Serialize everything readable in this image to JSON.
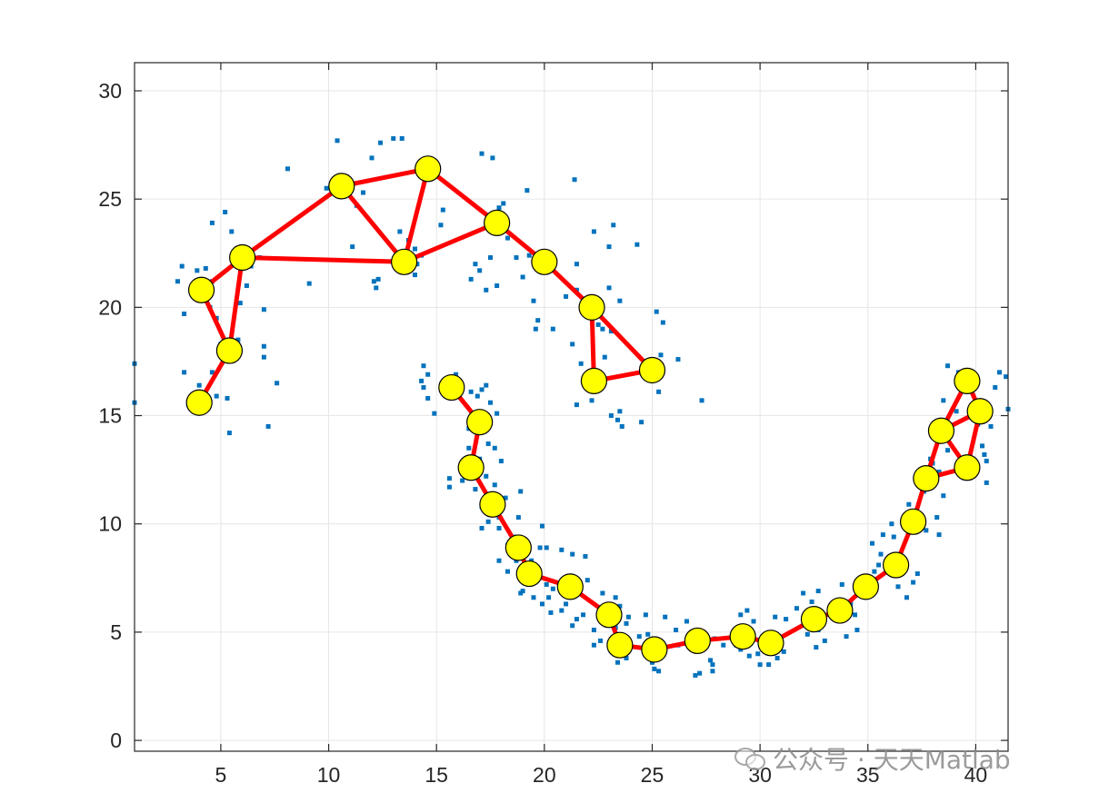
{
  "chart_data": {
    "type": "scatter",
    "title": "",
    "xlabel": "",
    "ylabel": "",
    "xlim": [
      1,
      41.5
    ],
    "ylim": [
      -0.5,
      31.3
    ],
    "xticks": [
      5,
      10,
      15,
      20,
      25,
      30,
      35,
      40
    ],
    "yticks": [
      0,
      5,
      10,
      15,
      20,
      25,
      30
    ],
    "grid": true,
    "colors": {
      "points": "#0072BD",
      "nodes_fill": "#FFFF00",
      "nodes_edge": "#000000",
      "edges": "#FF0000"
    },
    "scatter_points": [
      [
        4.0,
        16.4
      ],
      [
        3.5,
        15.5
      ],
      [
        4.5,
        15.6
      ],
      [
        4.8,
        15.9
      ],
      [
        5.3,
        15.8
      ],
      [
        5.4,
        14.2
      ],
      [
        3.3,
        17.0
      ],
      [
        4.6,
        17.0
      ],
      [
        5.1,
        17.8
      ],
      [
        5.0,
        18.3
      ],
      [
        5.8,
        18.5
      ],
      [
        4.5,
        20.0
      ],
      [
        4.8,
        19.5
      ],
      [
        3.3,
        19.7
      ],
      [
        3.0,
        21.2
      ],
      [
        3.2,
        21.9
      ],
      [
        3.9,
        21.7
      ],
      [
        4.3,
        21.8
      ],
      [
        4.6,
        21.2
      ],
      [
        5.9,
        20.2
      ],
      [
        6.4,
        21.9
      ],
      [
        6.2,
        21.0
      ],
      [
        7.0,
        19.9
      ],
      [
        7.0,
        18.2
      ],
      [
        7.0,
        17.7
      ],
      [
        7.6,
        16.5
      ],
      [
        7.2,
        14.5
      ],
      [
        4.6,
        23.9
      ],
      [
        5.2,
        24.4
      ],
      [
        5.5,
        23.5
      ],
      [
        6.8,
        22.3
      ],
      [
        8.1,
        26.4
      ],
      [
        9.1,
        21.1
      ],
      [
        9.9,
        25.5
      ],
      [
        10.4,
        27.7
      ],
      [
        11.6,
        25.3
      ],
      [
        11.3,
        24.7
      ],
      [
        11.1,
        22.8
      ],
      [
        12.0,
        26.9
      ],
      [
        12.4,
        27.6
      ],
      [
        13.0,
        27.8
      ],
      [
        13.4,
        27.8
      ],
      [
        13.3,
        23.5
      ],
      [
        13.7,
        23.1
      ],
      [
        14.0,
        22.7
      ],
      [
        14.1,
        22.0
      ],
      [
        14.0,
        21.5
      ],
      [
        12.3,
        21.3
      ],
      [
        12.1,
        21.2
      ],
      [
        12.2,
        20.9
      ],
      [
        14.3,
        22.4
      ],
      [
        15.2,
        23.8
      ],
      [
        15.3,
        24.5
      ],
      [
        14.6,
        25.9
      ],
      [
        15.0,
        26.5
      ],
      [
        16.8,
        22.0
      ],
      [
        17.5,
        22.3
      ],
      [
        16.6,
        21.3
      ],
      [
        17.0,
        21.7
      ],
      [
        17.3,
        20.8
      ],
      [
        17.8,
        21.0
      ],
      [
        17.1,
        27.1
      ],
      [
        17.6,
        26.9
      ],
      [
        17.8,
        24.2
      ],
      [
        17.9,
        24.6
      ],
      [
        18.3,
        23.2
      ],
      [
        18.7,
        22.3
      ],
      [
        19.3,
        22.4
      ],
      [
        19.2,
        25.4
      ],
      [
        18.1,
        24.8
      ],
      [
        19.0,
        21.4
      ],
      [
        19.5,
        20.3
      ],
      [
        20.3,
        22.1
      ],
      [
        21.0,
        20.5
      ],
      [
        21.5,
        22.0
      ],
      [
        21.5,
        20.8
      ],
      [
        21.4,
        25.9
      ],
      [
        20.4,
        19.0
      ],
      [
        21.3,
        18.3
      ],
      [
        19.7,
        19.4
      ],
      [
        19.6,
        19.0
      ],
      [
        22.3,
        23.5
      ],
      [
        23.0,
        22.8
      ],
      [
        23.2,
        23.8
      ],
      [
        23.0,
        20.9
      ],
      [
        22.7,
        19.0
      ],
      [
        23.1,
        18.9
      ],
      [
        22.5,
        19.2
      ],
      [
        23.5,
        20.3
      ],
      [
        24.3,
        22.9
      ],
      [
        21.9,
        16.4
      ],
      [
        21.5,
        15.5
      ],
      [
        22.2,
        15.7
      ],
      [
        21.7,
        17.4
      ],
      [
        22.8,
        17.7
      ],
      [
        23.1,
        15.0
      ],
      [
        23.4,
        14.8
      ],
      [
        23.6,
        14.5
      ],
      [
        24.5,
        14.7
      ],
      [
        23.5,
        15.2
      ],
      [
        25.3,
        16.1
      ],
      [
        25.2,
        19.8
      ],
      [
        25.5,
        19.3
      ],
      [
        25.4,
        17.8
      ],
      [
        24.9,
        17.0
      ],
      [
        26.2,
        17.6
      ],
      [
        27.3,
        15.7
      ],
      [
        14.4,
        17.3
      ],
      [
        14.6,
        16.9
      ],
      [
        14.3,
        16.6
      ],
      [
        14.4,
        16.3
      ],
      [
        14.6,
        15.8
      ],
      [
        14.9,
        15.1
      ],
      [
        15.9,
        16.9
      ],
      [
        16.0,
        16.5
      ],
      [
        15.8,
        16.3
      ],
      [
        16.6,
        16.1
      ],
      [
        16.9,
        15.9
      ],
      [
        17.1,
        16.2
      ],
      [
        17.3,
        16.4
      ],
      [
        17.5,
        15.6
      ],
      [
        17.8,
        15.1
      ],
      [
        17.2,
        14.3
      ],
      [
        16.5,
        14.4
      ],
      [
        16.5,
        13.5
      ],
      [
        17.4,
        13.7
      ],
      [
        17.7,
        13.5
      ],
      [
        17.0,
        13.0
      ],
      [
        16.5,
        12.8
      ],
      [
        15.6,
        12.1
      ],
      [
        15.6,
        11.7
      ],
      [
        16.2,
        12.0
      ],
      [
        16.8,
        11.6
      ],
      [
        17.3,
        12.2
      ],
      [
        17.1,
        10.8
      ],
      [
        17.3,
        11.3
      ],
      [
        17.7,
        11.8
      ],
      [
        18.0,
        12.9
      ],
      [
        18.2,
        11.2
      ],
      [
        18.9,
        11.5
      ],
      [
        18.8,
        10.3
      ],
      [
        17.9,
        10.3
      ],
      [
        17.1,
        9.8
      ],
      [
        17.4,
        10.1
      ],
      [
        17.9,
        9.8
      ],
      [
        18.6,
        9.4
      ],
      [
        18.3,
        9.0
      ],
      [
        17.9,
        8.3
      ],
      [
        18.3,
        7.8
      ],
      [
        18.7,
        8.3
      ],
      [
        19.1,
        8.8
      ],
      [
        19.4,
        8.3
      ],
      [
        19.9,
        9.9
      ],
      [
        19.8,
        8.9
      ],
      [
        20.1,
        8.9
      ],
      [
        20.8,
        8.8
      ],
      [
        21.3,
        8.6
      ],
      [
        21.9,
        8.5
      ],
      [
        22.0,
        7.4
      ],
      [
        21.1,
        7.4
      ],
      [
        20.4,
        7.0
      ],
      [
        20.1,
        7.2
      ],
      [
        20.2,
        6.6
      ],
      [
        19.0,
        6.9
      ],
      [
        18.9,
        6.8
      ],
      [
        19.5,
        6.6
      ],
      [
        19.9,
        6.3
      ],
      [
        20.3,
        5.9
      ],
      [
        20.8,
        6.0
      ],
      [
        21.0,
        6.3
      ],
      [
        21.5,
        5.6
      ],
      [
        21.8,
        5.8
      ],
      [
        21.3,
        5.3
      ],
      [
        22.6,
        6.0
      ],
      [
        22.7,
        6.8
      ],
      [
        23.3,
        6.6
      ],
      [
        23.5,
        6.2
      ],
      [
        22.3,
        5.1
      ],
      [
        22.6,
        4.6
      ],
      [
        22.3,
        4.4
      ],
      [
        23.3,
        5.2
      ],
      [
        23.8,
        5.4
      ],
      [
        23.9,
        5.7
      ],
      [
        23.8,
        3.8
      ],
      [
        23.4,
        3.6
      ],
      [
        23.7,
        4.5
      ],
      [
        24.4,
        4.8
      ],
      [
        24.8,
        4.9
      ],
      [
        24.7,
        5.8
      ],
      [
        25.6,
        5.7
      ],
      [
        25.6,
        4.2
      ],
      [
        25.1,
        3.3
      ],
      [
        25.0,
        3.6
      ],
      [
        25.3,
        3.2
      ],
      [
        26.1,
        5.1
      ],
      [
        26.6,
        5.5
      ],
      [
        26.2,
        4.4
      ],
      [
        26.9,
        4.9
      ],
      [
        27.0,
        3.0
      ],
      [
        27.2,
        3.1
      ],
      [
        27.8,
        3.2
      ],
      [
        27.7,
        3.7
      ],
      [
        27.8,
        3.5
      ],
      [
        27.9,
        4.7
      ],
      [
        28.3,
        4.4
      ],
      [
        28.9,
        4.4
      ],
      [
        29.1,
        4.2
      ],
      [
        29.1,
        5.8
      ],
      [
        29.4,
        6.0
      ],
      [
        29.7,
        5.5
      ],
      [
        29.9,
        4.0
      ],
      [
        29.5,
        3.9
      ],
      [
        30.0,
        3.5
      ],
      [
        30.4,
        3.5
      ],
      [
        30.8,
        3.8
      ],
      [
        31.1,
        4.1
      ],
      [
        30.7,
        5.7
      ],
      [
        31.2,
        5.6
      ],
      [
        31.7,
        6.1
      ],
      [
        32.0,
        6.8
      ],
      [
        32.4,
        6.4
      ],
      [
        32.7,
        6.9
      ],
      [
        32.7,
        5.1
      ],
      [
        32.2,
        4.9
      ],
      [
        32.6,
        4.3
      ],
      [
        33.0,
        4.6
      ],
      [
        33.4,
        6.1
      ],
      [
        33.8,
        7.2
      ],
      [
        34.2,
        6.3
      ],
      [
        34.4,
        5.8
      ],
      [
        34.5,
        5.1
      ],
      [
        34.0,
        4.8
      ],
      [
        34.8,
        7.4
      ],
      [
        35.3,
        7.8
      ],
      [
        35.5,
        8.1
      ],
      [
        35.2,
        9.1
      ],
      [
        35.6,
        8.6
      ],
      [
        35.7,
        9.5
      ],
      [
        36.1,
        10.0
      ],
      [
        36.2,
        9.4
      ],
      [
        36.7,
        10.2
      ],
      [
        36.4,
        7.1
      ],
      [
        36.8,
        6.6
      ],
      [
        37.1,
        7.3
      ],
      [
        37.3,
        7.7
      ],
      [
        36.9,
        10.9
      ],
      [
        37.6,
        11.5
      ],
      [
        37.2,
        12.1
      ],
      [
        37.9,
        13.0
      ],
      [
        38.0,
        12.8
      ],
      [
        37.7,
        9.7
      ],
      [
        38.3,
        9.5
      ],
      [
        38.2,
        10.3
      ],
      [
        38.5,
        11.3
      ],
      [
        38.3,
        12.4
      ],
      [
        38.7,
        13.4
      ],
      [
        38.8,
        14.3
      ],
      [
        38.5,
        15.7
      ],
      [
        39.1,
        15.2
      ],
      [
        38.7,
        17.3
      ],
      [
        39.2,
        17.0
      ],
      [
        39.8,
        16.3
      ],
      [
        39.8,
        15.3
      ],
      [
        40.1,
        14.6
      ],
      [
        40.3,
        13.6
      ],
      [
        40.5,
        12.9
      ],
      [
        40.5,
        11.9
      ],
      [
        40.4,
        13.2
      ],
      [
        40.9,
        16.3
      ],
      [
        41.1,
        17.0
      ],
      [
        41.4,
        16.8
      ],
      [
        41.5,
        15.3
      ],
      [
        40.7,
        14.5
      ],
      [
        1.0,
        17.4
      ],
      [
        1.0,
        15.6
      ]
    ],
    "nodes": [
      [
        4.0,
        15.6
      ],
      [
        5.4,
        18.0
      ],
      [
        4.1,
        20.8
      ],
      [
        6.0,
        22.3
      ],
      [
        10.6,
        25.6
      ],
      [
        13.5,
        22.1
      ],
      [
        14.6,
        26.4
      ],
      [
        17.8,
        23.9
      ],
      [
        20.0,
        22.1
      ],
      [
        22.2,
        20.0
      ],
      [
        22.3,
        16.6
      ],
      [
        25.0,
        17.1
      ],
      [
        15.7,
        16.3
      ],
      [
        17.0,
        14.7
      ],
      [
        16.6,
        12.6
      ],
      [
        17.6,
        10.9
      ],
      [
        18.8,
        8.9
      ],
      [
        19.3,
        7.7
      ],
      [
        21.2,
        7.1
      ],
      [
        23.0,
        5.8
      ],
      [
        23.5,
        4.4
      ],
      [
        25.1,
        4.2
      ],
      [
        27.1,
        4.6
      ],
      [
        29.2,
        4.8
      ],
      [
        30.5,
        4.5
      ],
      [
        32.5,
        5.6
      ],
      [
        33.7,
        6.0
      ],
      [
        34.9,
        7.1
      ],
      [
        36.3,
        8.1
      ],
      [
        37.1,
        10.1
      ],
      [
        37.7,
        12.1
      ],
      [
        38.4,
        14.3
      ],
      [
        39.6,
        12.6
      ],
      [
        40.2,
        15.2
      ],
      [
        39.6,
        16.6
      ]
    ],
    "edges": [
      [
        0,
        1
      ],
      [
        1,
        3
      ],
      [
        2,
        3
      ],
      [
        1,
        2
      ],
      [
        3,
        5
      ],
      [
        3,
        4
      ],
      [
        4,
        6
      ],
      [
        4,
        5
      ],
      [
        5,
        6
      ],
      [
        6,
        7
      ],
      [
        5,
        7
      ],
      [
        7,
        8
      ],
      [
        8,
        9
      ],
      [
        9,
        10
      ],
      [
        9,
        11
      ],
      [
        10,
        11
      ],
      [
        12,
        13
      ],
      [
        13,
        14
      ],
      [
        14,
        15
      ],
      [
        15,
        16
      ],
      [
        16,
        17
      ],
      [
        17,
        18
      ],
      [
        18,
        19
      ],
      [
        19,
        20
      ],
      [
        20,
        21
      ],
      [
        21,
        22
      ],
      [
        22,
        23
      ],
      [
        23,
        24
      ],
      [
        24,
        25
      ],
      [
        25,
        26
      ],
      [
        26,
        27
      ],
      [
        27,
        28
      ],
      [
        28,
        29
      ],
      [
        29,
        30
      ],
      [
        30,
        31
      ],
      [
        30,
        32
      ],
      [
        31,
        32
      ],
      [
        31,
        34
      ],
      [
        31,
        33
      ],
      [
        32,
        33
      ],
      [
        33,
        34
      ]
    ]
  },
  "watermark": {
    "text": "公众号 · 天天Matlab"
  }
}
